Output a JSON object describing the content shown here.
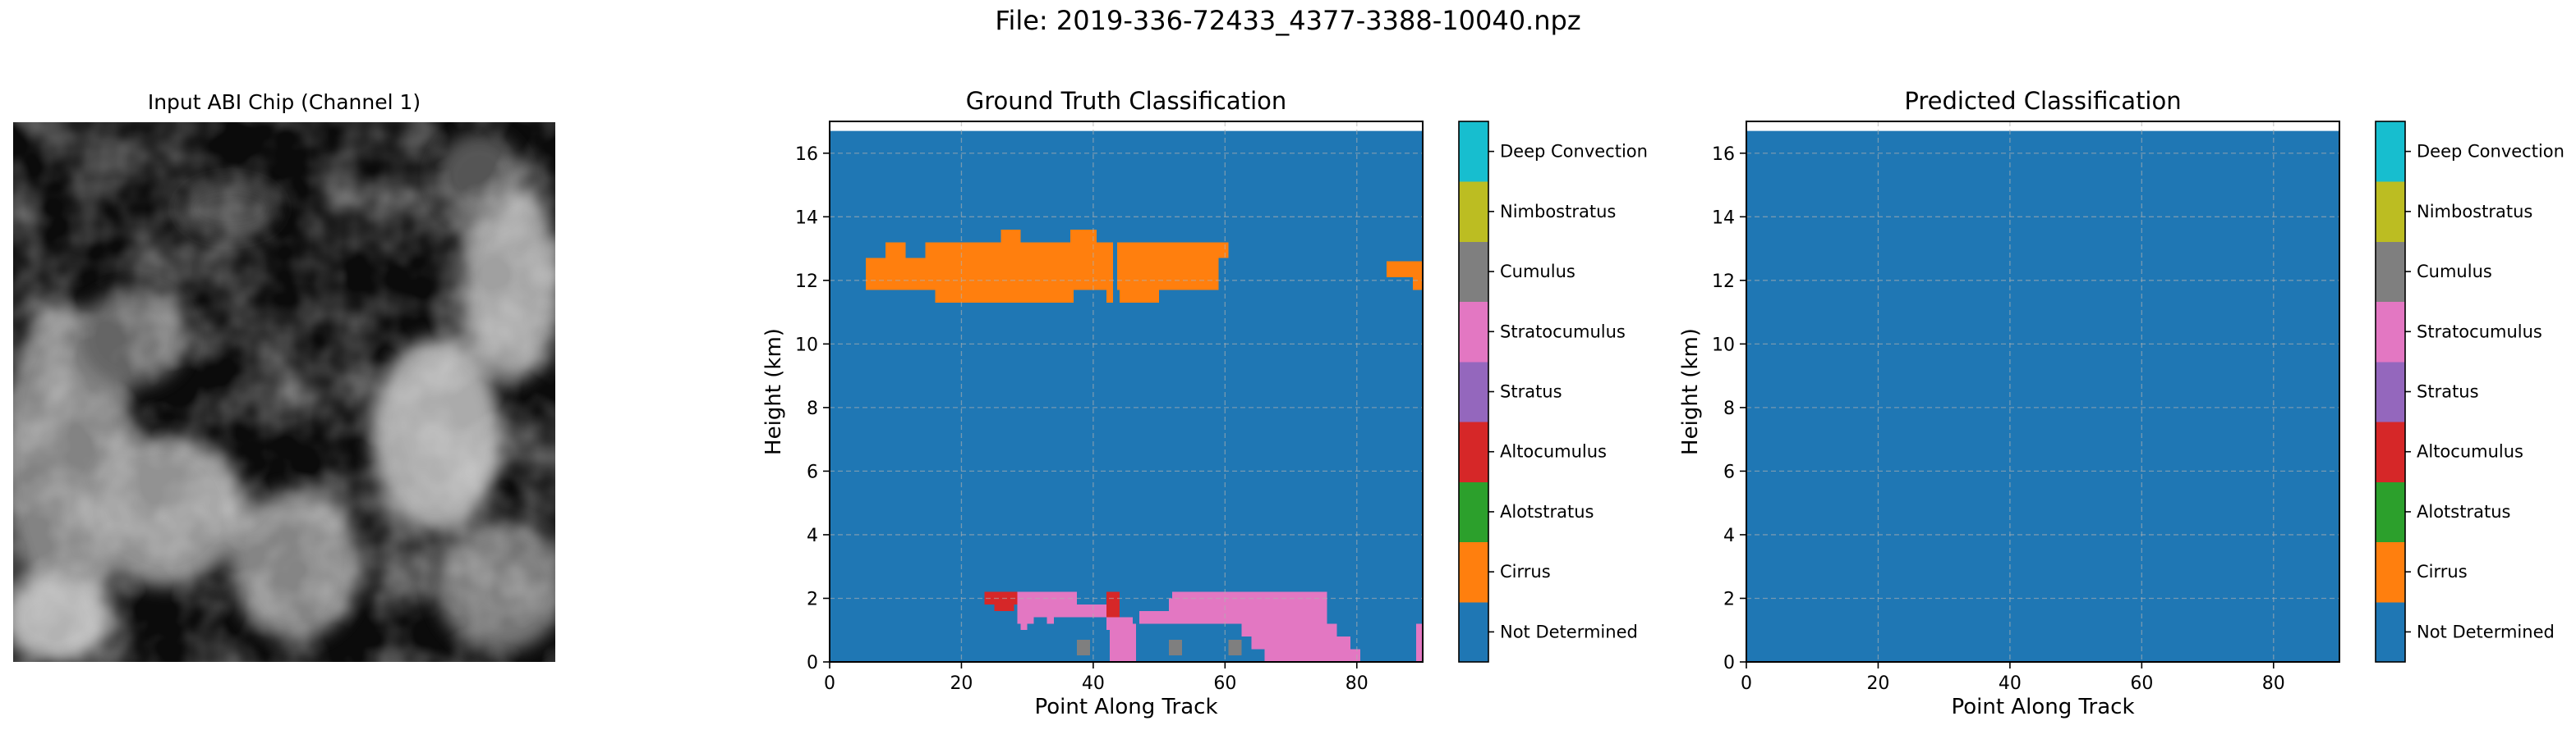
{
  "figure": {
    "title": "File: 2019-336-72433_4377-3388-10040.npz"
  },
  "panels": {
    "input": {
      "title": "Input ABI Chip (Channel 1)"
    },
    "ground_truth": {
      "title": "Ground Truth Classification"
    },
    "predicted": {
      "title": "Predicted Classification"
    }
  },
  "colors": {
    "Not Determined": "#1f77b4",
    "Cirrus": "#ff7f0e",
    "Alotstratus": "#2ca02c",
    "Altocumulus": "#d62728",
    "Stratus": "#9467bd",
    "Stratocumulus": "#e377c2",
    "Cumulus": "#7f7f7f",
    "Nimbostratus": "#bcbd22",
    "Deep Convection": "#17becf"
  },
  "chart_data": [
    {
      "type": "heatmap",
      "title": "Ground Truth Classification",
      "xlabel": "Point Along Track",
      "ylabel": "Height (km)",
      "xlim": [
        0,
        90
      ],
      "ylim": [
        0,
        17
      ],
      "xticks": [
        0,
        20,
        40,
        60,
        80
      ],
      "yticks": [
        0,
        2,
        4,
        6,
        8,
        10,
        12,
        14,
        16
      ],
      "grid": true,
      "background_class": "Not Determined",
      "data_top_height": 16.7,
      "colorbar": [
        "Not Determined",
        "Cirrus",
        "Alotstratus",
        "Altocumulus",
        "Stratus",
        "Stratocumulus",
        "Cumulus",
        "Nimbostratus",
        "Deep Convection"
      ],
      "regions": [
        {
          "class": "Cirrus",
          "x": [
            5.5,
            16
          ],
          "y": [
            11.7,
            12.7
          ]
        },
        {
          "class": "Cirrus",
          "x": [
            8.5,
            11.5
          ],
          "y": [
            12.7,
            13.2
          ]
        },
        {
          "class": "Cirrus",
          "x": [
            14.5,
            33.5
          ],
          "y": [
            12.7,
            13.2
          ]
        },
        {
          "class": "Cirrus",
          "x": [
            16,
            35
          ],
          "y": [
            11.3,
            12.7
          ]
        },
        {
          "class": "Cirrus",
          "x": [
            26,
            29
          ],
          "y": [
            13.2,
            13.6
          ]
        },
        {
          "class": "Cirrus",
          "x": [
            33,
            37
          ],
          "y": [
            11.3,
            13.2
          ]
        },
        {
          "class": "Cirrus",
          "x": [
            36.5,
            40.5
          ],
          "y": [
            13.2,
            13.6
          ]
        },
        {
          "class": "Cirrus",
          "x": [
            35,
            42
          ],
          "y": [
            11.7,
            13.2
          ]
        },
        {
          "class": "Cirrus",
          "x": [
            42,
            43
          ],
          "y": [
            11.3,
            13.2
          ]
        },
        {
          "class": "Cirrus",
          "x": [
            43.6,
            59
          ],
          "y": [
            11.7,
            13.2
          ]
        },
        {
          "class": "Cirrus",
          "x": [
            44,
            50
          ],
          "y": [
            11.3,
            11.7
          ]
        },
        {
          "class": "Cirrus",
          "x": [
            59,
            60.5
          ],
          "y": [
            12.7,
            13.2
          ]
        },
        {
          "class": "Cirrus",
          "x": [
            84.5,
            88.5
          ],
          "y": [
            12.1,
            12.6
          ]
        },
        {
          "class": "Cirrus",
          "x": [
            88.5,
            90
          ],
          "y": [
            11.7,
            12.6
          ]
        },
        {
          "class": "Altocumulus",
          "x": [
            23.5,
            28.5
          ],
          "y": [
            1.8,
            2.2
          ]
        },
        {
          "class": "Altocumulus",
          "x": [
            25,
            28
          ],
          "y": [
            1.6,
            1.8
          ]
        },
        {
          "class": "Altocumulus",
          "x": [
            42,
            44
          ],
          "y": [
            1.4,
            2.2
          ]
        },
        {
          "class": "Stratocumulus",
          "x": [
            28.5,
            37.5
          ],
          "y": [
            1.8,
            2.2
          ]
        },
        {
          "class": "Stratocumulus",
          "x": [
            28.5,
            31
          ],
          "y": [
            1.2,
            1.8
          ]
        },
        {
          "class": "Stratocumulus",
          "x": [
            31,
            42
          ],
          "y": [
            1.4,
            1.8
          ]
        },
        {
          "class": "Stratocumulus",
          "x": [
            29,
            30
          ],
          "y": [
            1.0,
            1.2
          ]
        },
        {
          "class": "Stratocumulus",
          "x": [
            33,
            34
          ],
          "y": [
            1.2,
            1.4
          ]
        },
        {
          "class": "Stratocumulus",
          "x": [
            42,
            46
          ],
          "y": [
            1.0,
            1.4
          ]
        },
        {
          "class": "Stratocumulus",
          "x": [
            42.5,
            46.5
          ],
          "y": [
            0,
            1.2
          ]
        },
        {
          "class": "Stratocumulus",
          "x": [
            47,
            52
          ],
          "y": [
            1.2,
            1.6
          ]
        },
        {
          "class": "Stratocumulus",
          "x": [
            52,
            75.5
          ],
          "y": [
            1.2,
            2.2
          ]
        },
        {
          "class": "Stratocumulus",
          "x": [
            51.5,
            52.5
          ],
          "y": [
            1.6,
            2.0
          ]
        },
        {
          "class": "Stratocumulus",
          "x": [
            62.5,
            77
          ],
          "y": [
            0.8,
            1.2
          ]
        },
        {
          "class": "Stratocumulus",
          "x": [
            64,
            79
          ],
          "y": [
            0.4,
            0.8
          ]
        },
        {
          "class": "Stratocumulus",
          "x": [
            66,
            80.5
          ],
          "y": [
            0,
            0.4
          ]
        },
        {
          "class": "Stratocumulus",
          "x": [
            89,
            90
          ],
          "y": [
            0,
            1.2
          ]
        },
        {
          "class": "Cumulus",
          "x": [
            37.5,
            39.5
          ],
          "y": [
            0.2,
            0.7
          ]
        },
        {
          "class": "Cumulus",
          "x": [
            51.5,
            53.5
          ],
          "y": [
            0.2,
            0.7
          ]
        },
        {
          "class": "Cumulus",
          "x": [
            60.5,
            62.5
          ],
          "y": [
            0.2,
            0.7
          ]
        }
      ]
    },
    {
      "type": "heatmap",
      "title": "Predicted Classification",
      "xlabel": "Point Along Track",
      "ylabel": "Height (km)",
      "xlim": [
        0,
        90
      ],
      "ylim": [
        0,
        17
      ],
      "xticks": [
        0,
        20,
        40,
        60,
        80
      ],
      "yticks": [
        0,
        2,
        4,
        6,
        8,
        10,
        12,
        14,
        16
      ],
      "grid": true,
      "background_class": "Not Determined",
      "data_top_height": 16.7,
      "colorbar": [
        "Not Determined",
        "Cirrus",
        "Alotstratus",
        "Altocumulus",
        "Stratus",
        "Stratocumulus",
        "Cumulus",
        "Nimbostratus",
        "Deep Convection"
      ],
      "regions": []
    }
  ]
}
